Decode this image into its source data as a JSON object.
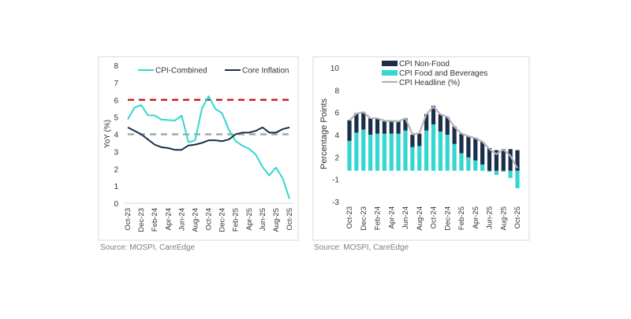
{
  "chart_data": [
    {
      "type": "line",
      "ylabel": "YoY (%)",
      "ylim": [
        0,
        8
      ],
      "yticks": [
        "0",
        "1",
        "2",
        "3",
        "4",
        "5",
        "6",
        "7",
        "8"
      ],
      "categories": [
        "Oct-23",
        "Nov-23",
        "Dec-23",
        "Jan-24",
        "Feb-24",
        "Mar-24",
        "Apr-24",
        "May-24",
        "Jun-24",
        "Jul-24",
        "Aug-24",
        "Sep-24",
        "Oct-24",
        "Nov-24",
        "Dec-24",
        "Jan-25",
        "Feb-25",
        "Mar-25",
        "Apr-25",
        "May-25",
        "Jun-25",
        "Jul-25",
        "Aug-25",
        "Sep-25",
        "Oct-25"
      ],
      "xtick_labels": [
        "Oct-23",
        "Dec-23",
        "Feb-24",
        "Apr-24",
        "Jun-24",
        "Aug-24",
        "Oct-24",
        "Dec-24",
        "Feb-25",
        "Apr-25",
        "Jun-25",
        "Aug-25",
        "Oct-25"
      ],
      "series": [
        {
          "name": "CPI-Combined",
          "color": "#33d6d0",
          "values": [
            4.87,
            5.55,
            5.69,
            5.1,
            5.09,
            4.85,
            4.83,
            4.8,
            5.08,
            3.54,
            3.65,
            5.49,
            6.21,
            5.48,
            5.22,
            4.26,
            3.61,
            3.34,
            3.16,
            2.82,
            2.1,
            1.61,
            2.07,
            1.44,
            0.25
          ]
        },
        {
          "name": "Core Inflation",
          "color": "#1b2f4a",
          "values": [
            4.4,
            4.2,
            4.0,
            3.7,
            3.4,
            3.25,
            3.2,
            3.1,
            3.1,
            3.35,
            3.4,
            3.5,
            3.65,
            3.65,
            3.6,
            3.7,
            4.0,
            4.1,
            4.1,
            4.2,
            4.4,
            4.1,
            4.1,
            4.3,
            4.4
          ]
        }
      ],
      "reference_lines": [
        {
          "value": 6,
          "color": "#cc1f1f",
          "style": "dashed"
        },
        {
          "value": 4,
          "color": "#a6a6a6",
          "style": "dashed"
        }
      ],
      "legend": "top",
      "grid": false,
      "source": "Source: MOSPI, CareEdge"
    },
    {
      "type": "bar",
      "stacked": true,
      "ylabel": "Percentage Points",
      "ylim": [
        -3,
        10
      ],
      "yticks": [
        "10",
        "8",
        "6",
        "4",
        "2",
        "-1",
        "-3"
      ],
      "categories": [
        "Oct-23",
        "Nov-23",
        "Dec-23",
        "Jan-24",
        "Feb-24",
        "Mar-24",
        "Apr-24",
        "May-24",
        "Jun-24",
        "Jul-24",
        "Aug-24",
        "Sep-24",
        "Oct-24",
        "Nov-24",
        "Dec-24",
        "Jan-25",
        "Feb-25",
        "Mar-25",
        "Apr-25",
        "May-25",
        "Jun-25",
        "Jul-25",
        "Aug-25",
        "Sep-25",
        "Oct-25"
      ],
      "xtick_labels": [
        "Oct-23",
        "Dec-23",
        "Feb-24",
        "Apr-24",
        "Jun-24",
        "Aug-24",
        "Oct-24",
        "Dec-24",
        "Feb-25",
        "Apr-25",
        "Jun-25",
        "Aug-25",
        "Oct-25"
      ],
      "series": [
        {
          "name": "CPI Non-Food",
          "color": "#1b2f4a",
          "values": [
            2.0,
            1.9,
            1.7,
            1.6,
            1.5,
            1.2,
            1.2,
            1.2,
            1.2,
            1.2,
            1.2,
            1.6,
            1.8,
            1.7,
            1.7,
            1.7,
            1.9,
            2.1,
            2.2,
            2.2,
            2.2,
            2.0,
            2.1,
            2.1,
            2.0
          ]
        },
        {
          "name": "CPI Food and Beverages",
          "color": "#33d6d0",
          "values": [
            2.9,
            3.7,
            4.0,
            3.5,
            3.6,
            3.6,
            3.6,
            3.6,
            3.9,
            2.3,
            2.4,
            3.9,
            4.5,
            3.8,
            3.5,
            2.6,
            1.7,
            1.3,
            1.0,
            0.6,
            -0.1,
            -0.4,
            -0.1,
            -0.7,
            -1.7
          ]
        },
        {
          "name": "CPI Headline (%)",
          "type": "line",
          "color": "#b3b3b3",
          "values": [
            4.87,
            5.55,
            5.69,
            5.1,
            5.09,
            4.85,
            4.83,
            4.8,
            5.08,
            3.54,
            3.65,
            5.49,
            6.21,
            5.48,
            5.22,
            4.26,
            3.61,
            3.34,
            3.16,
            2.82,
            2.1,
            1.61,
            2.07,
            1.44,
            0.25
          ]
        }
      ],
      "legend": "top",
      "grid": false,
      "source": "Source:  MOSPI, CareEdge"
    }
  ]
}
